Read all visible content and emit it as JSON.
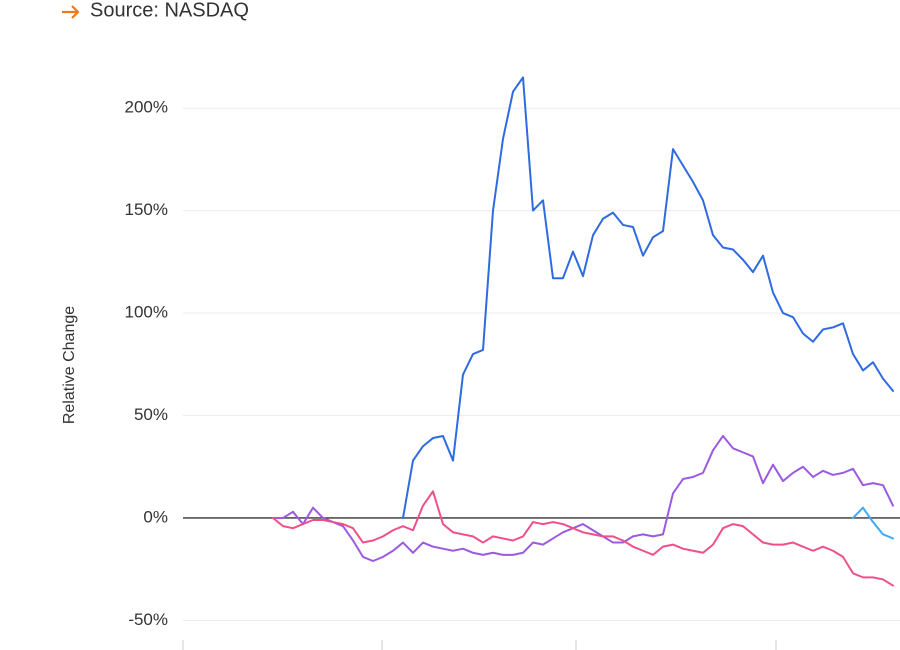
{
  "chart_data": {
    "type": "line",
    "source": "Source: NASDAQ",
    "y_label": "Relative Change",
    "categories": [
      null,
      null,
      null,
      null,
      null,
      null,
      null,
      null,
      null,
      null,
      null,
      null,
      null,
      null,
      null,
      null,
      null,
      null,
      null,
      null,
      null,
      null,
      null,
      null,
      null,
      null,
      null,
      null,
      null,
      null,
      null,
      null,
      null,
      null,
      null,
      null,
      null,
      null,
      null,
      null,
      null,
      null,
      null,
      null,
      null,
      null,
      null,
      null,
      null,
      null,
      null,
      null,
      null,
      null,
      null,
      null,
      null,
      null,
      null,
      null,
      null,
      null,
      null,
      null,
      null,
      null,
      null,
      null,
      null,
      null,
      null,
      null
    ],
    "series": [
      {
        "color": "#2f6be0",
        "values": [
          null,
          null,
          null,
          null,
          null,
          null,
          null,
          null,
          null,
          null,
          null,
          null,
          null,
          null,
          null,
          null,
          null,
          null,
          null,
          null,
          null,
          null,
          0,
          28,
          35,
          39,
          40,
          28,
          70,
          80,
          82,
          150,
          185,
          208,
          215,
          150,
          155,
          117,
          117,
          130,
          118,
          138,
          146,
          149,
          143,
          142,
          128,
          137,
          140,
          180,
          172,
          164,
          155,
          138,
          132,
          131,
          126,
          120,
          128,
          110,
          100,
          98,
          90,
          86,
          92,
          93,
          95,
          80,
          72,
          76,
          68,
          62
        ]
      },
      {
        "color": "#9b5ae0",
        "values": [
          null,
          null,
          null,
          null,
          null,
          null,
          null,
          null,
          null,
          0,
          0,
          3,
          -3,
          5,
          0,
          -2,
          -4,
          -11,
          -19,
          -21,
          -19,
          -16,
          -12,
          -17,
          -12,
          -14,
          -15,
          -16,
          -15,
          -17,
          -18,
          -17,
          -18,
          -18,
          -17,
          -12,
          -13,
          -10,
          -7,
          -5,
          -3,
          -6,
          -9,
          -12,
          -12,
          -9,
          -8,
          -9,
          -8,
          12,
          19,
          20,
          22,
          33,
          40,
          34,
          32,
          30,
          17,
          26,
          18,
          22,
          25,
          20,
          23,
          21,
          22,
          24,
          16,
          17,
          16,
          6
        ]
      },
      {
        "color": "#f0508a",
        "values": [
          null,
          null,
          null,
          null,
          null,
          null,
          null,
          null,
          null,
          0,
          -4,
          -5,
          -3,
          -1,
          -1,
          -2,
          -3,
          -5,
          -12,
          -11,
          -9,
          -6,
          -4,
          -6,
          6,
          13,
          -3,
          -7,
          -8,
          -9,
          -12,
          -9,
          -10,
          -11,
          -9,
          -2,
          -3,
          -2,
          -3,
          -5,
          -7,
          -8,
          -9,
          -9,
          -11,
          -14,
          -16,
          -18,
          -14,
          -13,
          -15,
          -16,
          -17,
          -13,
          -5,
          -3,
          -4,
          -8,
          -12,
          -13,
          -13,
          -12,
          -14,
          -16,
          -14,
          -16,
          -19,
          -27,
          -29,
          -29,
          -30,
          -33
        ]
      },
      {
        "color": "#3fa9f5",
        "values": [
          null,
          null,
          null,
          null,
          null,
          null,
          null,
          null,
          null,
          null,
          null,
          null,
          null,
          null,
          null,
          null,
          null,
          null,
          null,
          null,
          null,
          null,
          null,
          null,
          null,
          null,
          null,
          null,
          null,
          null,
          null,
          null,
          null,
          null,
          null,
          null,
          null,
          null,
          null,
          null,
          null,
          null,
          null,
          null,
          null,
          null,
          null,
          null,
          null,
          null,
          null,
          null,
          null,
          null,
          null,
          null,
          null,
          null,
          null,
          null,
          null,
          null,
          null,
          null,
          null,
          null,
          null,
          0,
          5,
          -2,
          -8,
          -10
        ]
      }
    ],
    "ylim": [
      -62,
      223
    ],
    "yticks": [
      {
        "value": -50,
        "label": "-50%"
      },
      {
        "value": 0,
        "label": "0%"
      },
      {
        "value": 50,
        "label": "50%"
      },
      {
        "value": 100,
        "label": "100%"
      },
      {
        "value": 150,
        "label": "150%"
      },
      {
        "value": 200,
        "label": "200%"
      }
    ],
    "grid": true
  }
}
